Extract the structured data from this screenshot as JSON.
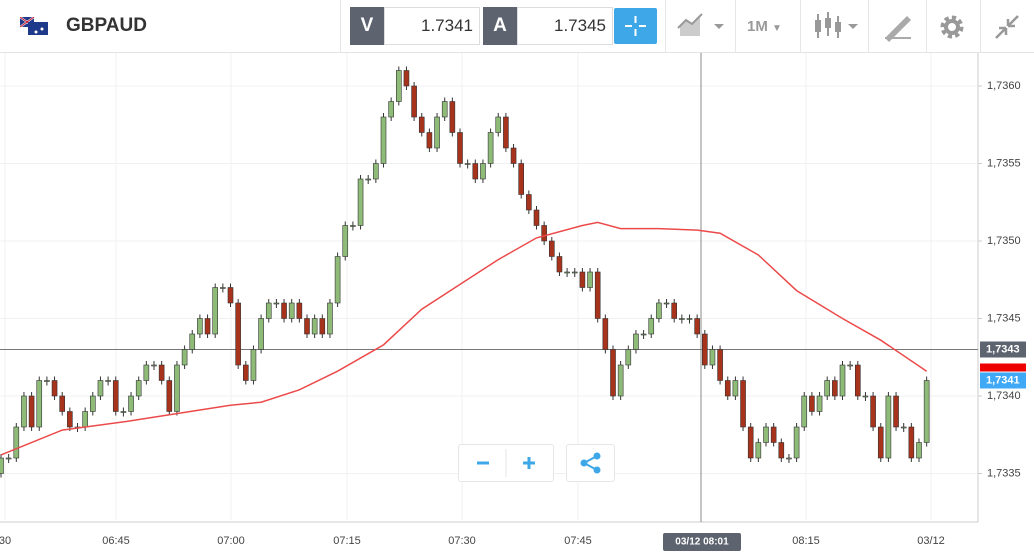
{
  "header": {
    "symbol": "GBPAUD",
    "bid_label": "V",
    "bid": 1.7341,
    "ask_label": "A",
    "ask": 1.7345,
    "timeframe": "1M"
  },
  "chart_data": {
    "type": "candlestick",
    "open": [
      1.7335,
      1.7336,
      1.7336,
      1.7338,
      1.734,
      1.7338,
      1.7341,
      1.7341,
      1.734,
      1.7339,
      1.7338,
      1.7338,
      1.7339,
      1.734,
      1.7341,
      1.7341,
      1.7339,
      1.7339,
      1.734,
      1.7341,
      1.7342,
      1.7342,
      1.7341,
      1.7339,
      1.7342,
      1.7343,
      1.7344,
      1.7345,
      1.7344,
      1.7347,
      1.7347,
      1.7346,
      1.7342,
      1.7341,
      1.7343,
      1.7345,
      1.7346,
      1.7346,
      1.7345,
      1.7346,
      1.7345,
      1.7344,
      1.7345,
      1.7344,
      1.7346,
      1.7349,
      1.7351,
      1.7351,
      1.7354,
      1.7354,
      1.7355,
      1.7358,
      1.7359,
      1.7361,
      1.736,
      1.7358,
      1.7357,
      1.7356,
      1.7358,
      1.7359,
      1.7357,
      1.7355,
      1.7355,
      1.7354,
      1.7355,
      1.7357,
      1.7358,
      1.7356,
      1.7355,
      1.7353,
      1.7352,
      1.7351,
      1.735,
      1.7349,
      1.7348,
      1.7348,
      1.7348,
      1.7347,
      1.7348,
      1.7345,
      1.7343,
      1.734,
      1.7342,
      1.7343,
      1.7344,
      1.7344,
      1.7345,
      1.7346,
      1.7346,
      1.7345,
      1.7345,
      1.7345,
      1.7344,
      1.7342,
      1.7343,
      1.7341,
      1.734,
      1.7341,
      1.7338,
      1.7336,
      1.7337,
      1.7338,
      1.7337,
      1.7336,
      1.7336,
      1.7338,
      1.734,
      1.7339,
      1.734,
      1.7341,
      1.734,
      1.7342,
      1.7342,
      1.734,
      1.734,
      1.7338,
      1.7336,
      1.734,
      1.7338,
      1.7338,
      1.7336,
      1.7337
    ],
    "close": [
      1.7336,
      1.7336,
      1.7338,
      1.734,
      1.7338,
      1.7341,
      1.7341,
      1.734,
      1.7339,
      1.7338,
      1.7338,
      1.7339,
      1.734,
      1.7341,
      1.7341,
      1.7339,
      1.7339,
      1.734,
      1.7341,
      1.7342,
      1.7342,
      1.7341,
      1.7339,
      1.7342,
      1.7343,
      1.7344,
      1.7345,
      1.7344,
      1.7347,
      1.7347,
      1.7346,
      1.7342,
      1.7341,
      1.7343,
      1.7345,
      1.7346,
      1.7346,
      1.7345,
      1.7346,
      1.7345,
      1.7344,
      1.7345,
      1.7344,
      1.7346,
      1.7349,
      1.7351,
      1.7351,
      1.7354,
      1.7354,
      1.7355,
      1.7358,
      1.7359,
      1.7361,
      1.736,
      1.7358,
      1.7357,
      1.7356,
      1.7358,
      1.7359,
      1.7357,
      1.7355,
      1.7355,
      1.7354,
      1.7355,
      1.7357,
      1.7358,
      1.7356,
      1.7355,
      1.7353,
      1.7352,
      1.7351,
      1.735,
      1.7349,
      1.7348,
      1.7348,
      1.7348,
      1.7347,
      1.7348,
      1.7345,
      1.7343,
      1.734,
      1.7342,
      1.7343,
      1.7344,
      1.7344,
      1.7345,
      1.7346,
      1.7346,
      1.7345,
      1.7345,
      1.7345,
      1.7344,
      1.7342,
      1.7343,
      1.7341,
      1.734,
      1.7341,
      1.7338,
      1.7336,
      1.7337,
      1.7338,
      1.7337,
      1.7336,
      1.7336,
      1.7338,
      1.734,
      1.7339,
      1.734,
      1.7341,
      1.734,
      1.7342,
      1.7342,
      1.734,
      1.734,
      1.7338,
      1.7336,
      1.734,
      1.7338,
      1.7338,
      1.7336,
      1.7337,
      1.7341
    ],
    "up_color": "#8fbb78",
    "down_color": "#a8331c",
    "ma": {
      "color": "#ec4a4a",
      "x": [
        0,
        8,
        17,
        26,
        30,
        34,
        39,
        44,
        50,
        55,
        60,
        65,
        70,
        76,
        78,
        81,
        86,
        91,
        94,
        99,
        104,
        110,
        115,
        121
      ],
      "values": [
        1.73362,
        1.73378,
        1.73384,
        1.73391,
        1.73394,
        1.73396,
        1.73404,
        1.73416,
        1.73433,
        1.73456,
        1.73472,
        1.73488,
        1.73502,
        1.7351,
        1.73512,
        1.73508,
        1.73508,
        1.73507,
        1.73505,
        1.73491,
        1.73468,
        1.7345,
        1.73436,
        1.73416
      ]
    },
    "ylim": [
      1.7332,
      1.7362
    ],
    "yticks": [
      {
        "value": 1.7335,
        "label": "1,7335"
      },
      {
        "value": 1.734,
        "label": "1,7340"
      },
      {
        "value": 1.7345,
        "label": "1,7345"
      },
      {
        "value": 1.735,
        "label": "1,7350"
      },
      {
        "value": 1.7355,
        "label": "1,7355"
      },
      {
        "value": 1.736,
        "label": "1,7360"
      }
    ],
    "xtick_labels": [
      "30",
      "06:45",
      "07:00",
      "07:15",
      "07:30",
      "07:45",
      "08:15",
      "03/12"
    ],
    "crosshair_label": "03/12 08:01",
    "markers": [
      {
        "value": 1.7343,
        "label": "1,7343",
        "color": "#5d6470"
      },
      {
        "value": 1.7341,
        "label": "1,7341",
        "color": "#3fa9f5"
      }
    ],
    "grid": true
  }
}
